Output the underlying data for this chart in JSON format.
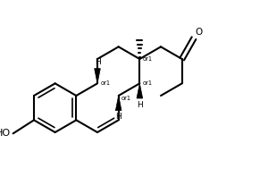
{
  "bg": "#ffffff",
  "lc": "#000000",
  "lw": 1.5,
  "fs": 6.5,
  "figsize": [
    3.0,
    1.98
  ],
  "dpi": 100,
  "xlim": [
    0,
    9.0
  ],
  "ylim": [
    0,
    5.9
  ]
}
